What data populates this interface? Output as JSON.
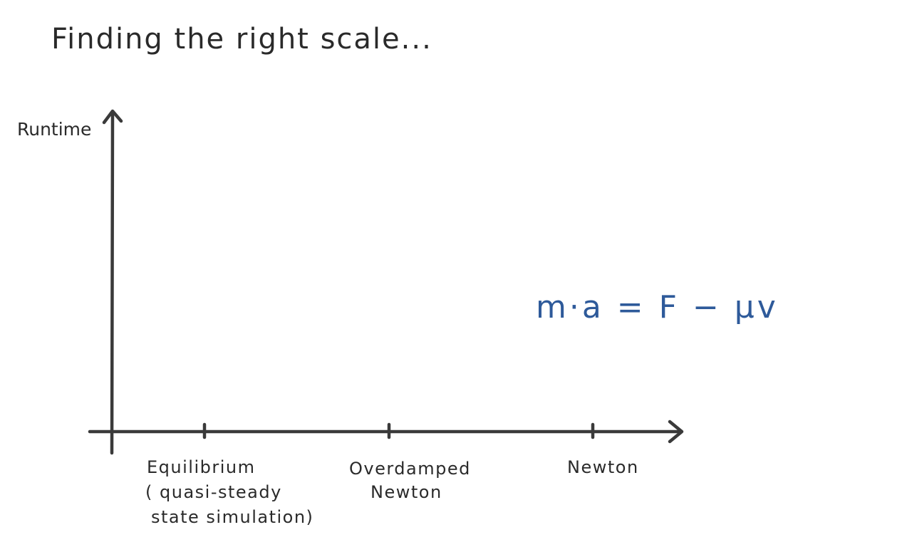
{
  "title": "Finding the right scale...",
  "y_axis": {
    "label": "Runtime"
  },
  "x_axis": {
    "ticks": [
      {
        "lines": [
          "Equilibrium",
          "( quasi-steady",
          "state simulation)"
        ]
      },
      {
        "lines": [
          "Overdamped",
          "Newton"
        ]
      },
      {
        "lines": [
          "Newton"
        ]
      }
    ]
  },
  "equation": "m·a = F − μv",
  "colors": {
    "ink": "#2a2a2a",
    "axis": "#3a3a3a",
    "equation": "#2e5a9a"
  }
}
